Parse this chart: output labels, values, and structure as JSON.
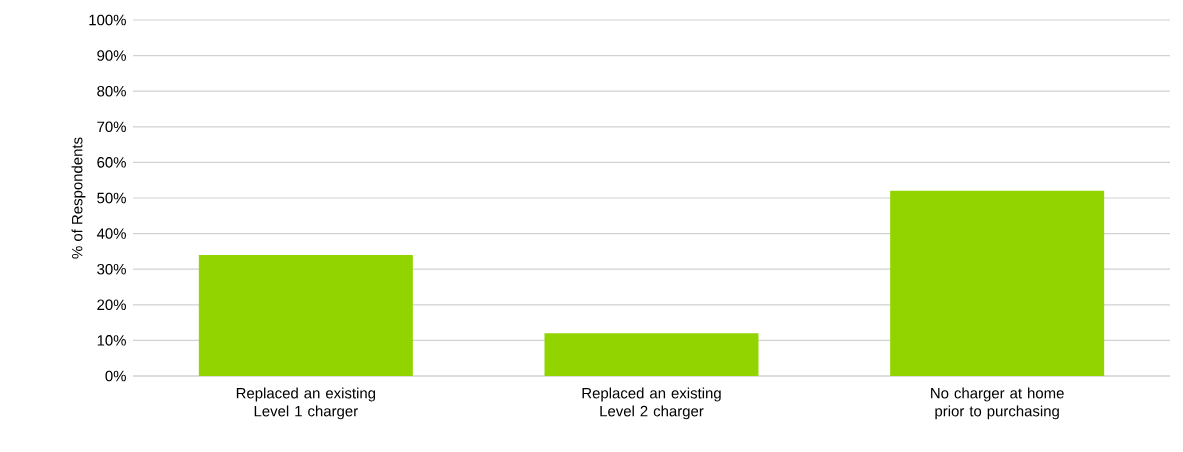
{
  "chart_data": {
    "type": "bar",
    "ylabel": "% of Respondents",
    "categories": [
      "Replaced an existing Level 1 charger",
      "Replaced an existing Level 2 charger",
      "No charger at home prior to purchasing"
    ],
    "values": [
      34,
      12,
      52
    ],
    "color": "#92d400",
    "ylim": [
      0,
      100
    ],
    "yticks": [
      {
        "value": 0,
        "label": "0%"
      },
      {
        "value": 10,
        "label": "10%"
      },
      {
        "value": 20,
        "label": "20%"
      },
      {
        "value": 30,
        "label": "30%"
      },
      {
        "value": 40,
        "label": "40%"
      },
      {
        "value": 50,
        "label": "50%"
      },
      {
        "value": 60,
        "label": "60%"
      },
      {
        "value": 70,
        "label": "70%"
      },
      {
        "value": 80,
        "label": "80%"
      },
      {
        "value": 90,
        "label": "90%"
      },
      {
        "value": 100,
        "label": "100%"
      }
    ],
    "grid": "y"
  }
}
